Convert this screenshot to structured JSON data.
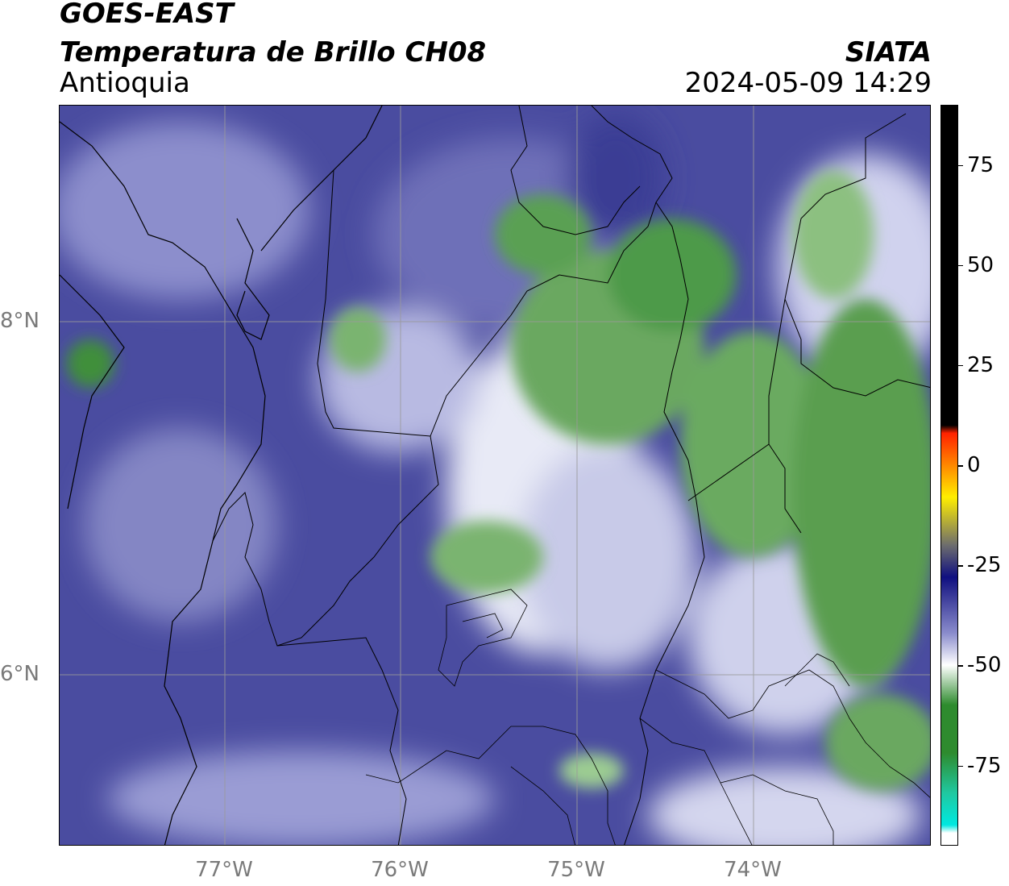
{
  "header": {
    "line1": "GOES-EAST",
    "line2": "Temperatura de Brillo CH08",
    "line3": "Antioquia",
    "org": "SIATA",
    "datetime": "2024-05-09 14:29"
  },
  "map": {
    "lon_ticks": [
      "77°W",
      "76°W",
      "75°W",
      "74°W"
    ],
    "lat_ticks": [
      "8°N",
      "6°N"
    ],
    "lon_values": [
      -77,
      -76,
      -75,
      -74
    ],
    "lat_values": [
      8,
      6
    ],
    "lon_range": [
      -77.95,
      -73.0
    ],
    "lat_range": [
      4.95,
      9.2
    ],
    "features": [
      "brightness-temperature-field",
      "department-borders",
      "municipal-borders",
      "coastline",
      "graticule"
    ],
    "graticule_color": "#9a9a9a"
  },
  "colorbar": {
    "ticks": [
      "75",
      "50",
      "25",
      "0",
      "-25",
      "-50",
      "-75"
    ],
    "tick_values": [
      75,
      50,
      25,
      0,
      -25,
      -50,
      -75
    ],
    "range": [
      -95,
      90
    ],
    "colors": {
      "top": "#000000",
      "red": "#ff2200",
      "orange": "#ff8800",
      "yellow": "#ffee00",
      "gray": "#6d6d6d",
      "navy": "#101080",
      "blue": "#3c3c9a",
      "lavender": "#8a8ccc",
      "white": "#ffffff",
      "green": "#2e8b2e",
      "teal": "#20c8a0",
      "cyan": "#00e8e0"
    }
  }
}
